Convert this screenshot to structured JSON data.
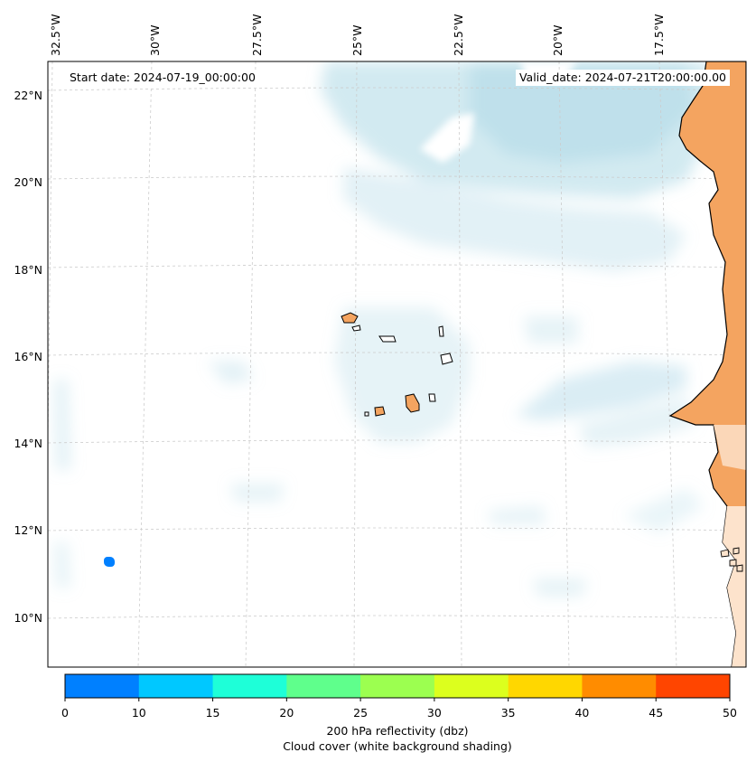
{
  "map": {
    "start_date": "Start date: 2024-07-19_00:00:00",
    "valid_date": "Valid_date: 2024-07-21T20:00:00.00",
    "lon_labels": [
      "32.5°W",
      "30°W",
      "27.5°W",
      "25°W",
      "22.5°W",
      "20°W",
      "17.5°W"
    ],
    "lat_labels": [
      "22°N",
      "20°N",
      "18°N",
      "16°N",
      "14°N",
      "12°N",
      "10°N"
    ],
    "colors": {
      "land": "#f4a460",
      "cloud": "#add8e6",
      "coast": "#000000",
      "grid": "#cccccc"
    }
  },
  "colorbar": {
    "ticks": [
      "0",
      "10",
      "15",
      "20",
      "25",
      "30",
      "35",
      "40",
      "45",
      "50"
    ],
    "colors": [
      "#0080ff",
      "#00c8ff",
      "#1effd8",
      "#5fff8c",
      "#9cff50",
      "#dcff1e",
      "#ffd700",
      "#ff8c00",
      "#ff4500"
    ],
    "label_line1": "200 hPa reflectivity (dbz)",
    "label_line2": "Cloud cover (white background shading)"
  },
  "echo": {
    "lon": -31.0,
    "lat": 11.3,
    "dbz_band": "0-10",
    "color": "#0080ff"
  }
}
